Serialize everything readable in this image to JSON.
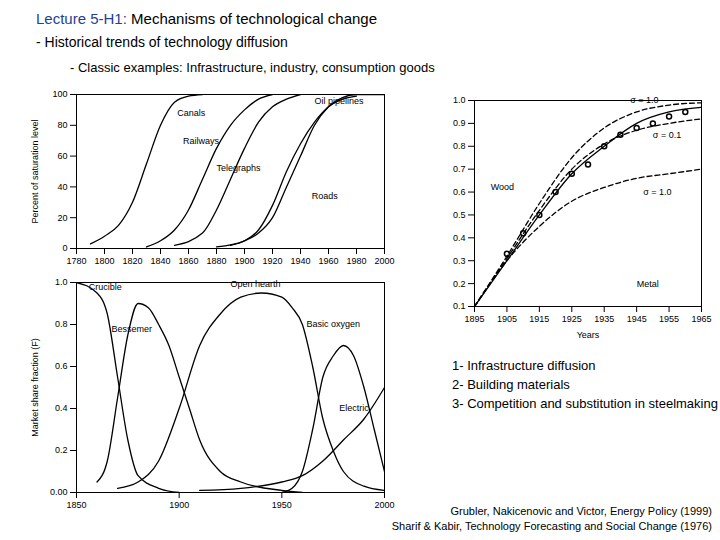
{
  "slide": {
    "title_lead": "Lecture 5-H1:",
    "title": "Mechanisms of technological change",
    "bullets": [
      "- Historical trends of technology diffusion",
      "- Classic examples: Infrastructure, industry, consumption goods"
    ],
    "list": [
      "1- Infrastructure diffusion",
      "2- Building materials",
      "3- Competition and substitution in steelmaking"
    ],
    "references": [
      "Grubler, Nakicenovic and Victor, Energy Policy (1999)",
      "Sharif & Kabir, Technology Forecasting and Social Change (1976)"
    ]
  },
  "chart_data": [
    {
      "type": "line",
      "ylabel": "Percent of saturation level",
      "xlim": [
        1780,
        2000
      ],
      "xticks": [
        1780,
        1800,
        1820,
        1840,
        1860,
        1880,
        1900,
        1920,
        1940,
        1960,
        1980,
        2000
      ],
      "ylim": [
        0,
        100
      ],
      "yticks": [
        0,
        20,
        40,
        60,
        80,
        100
      ],
      "grid": false,
      "series": [
        {
          "name": "Canals",
          "color": "#000000",
          "line_style": "solid",
          "label_x": 1852,
          "label_y": 88,
          "x": [
            1790,
            1800,
            1810,
            1820,
            1830,
            1840,
            1850,
            1860,
            1870
          ],
          "values": [
            3,
            8,
            15,
            30,
            55,
            80,
            95,
            99,
            100
          ]
        },
        {
          "name": "Railways",
          "color": "#000000",
          "line_style": "solid",
          "label_x": 1856,
          "label_y": 70,
          "x": [
            1830,
            1840,
            1850,
            1860,
            1870,
            1880,
            1890,
            1900,
            1910,
            1920
          ],
          "values": [
            1,
            5,
            12,
            25,
            45,
            65,
            80,
            90,
            97,
            100
          ]
        },
        {
          "name": "Telegraphs",
          "color": "#000000",
          "line_style": "solid",
          "label_x": 1880,
          "label_y": 52,
          "x": [
            1850,
            1870,
            1880,
            1890,
            1900,
            1910,
            1920,
            1930,
            1940
          ],
          "values": [
            2,
            10,
            25,
            45,
            65,
            82,
            92,
            97,
            100
          ]
        },
        {
          "name": "Roads",
          "color": "#000000",
          "line_style": "solid",
          "label_x": 1948,
          "label_y": 34,
          "x": [
            1890,
            1900,
            1910,
            1920,
            1930,
            1940,
            1950,
            1960,
            1970,
            1980
          ],
          "values": [
            2,
            5,
            12,
            28,
            50,
            68,
            82,
            92,
            97,
            99
          ]
        },
        {
          "name": "Oil pipelines",
          "color": "#000000",
          "line_style": "solid",
          "label_x": 1950,
          "label_y": 96,
          "x": [
            1880,
            1900,
            1910,
            1920,
            1930,
            1940,
            1950,
            1960,
            1970,
            1980,
            2000
          ],
          "values": [
            1,
            5,
            10,
            20,
            40,
            60,
            80,
            92,
            98,
            100,
            100
          ]
        }
      ]
    },
    {
      "type": "line",
      "xlabel": "Years",
      "xlim": [
        1895,
        1965
      ],
      "xticks": [
        1895,
        1905,
        1915,
        1925,
        1935,
        1945,
        1955,
        1965
      ],
      "ylim": [
        0.1,
        1
      ],
      "yticks": [
        0.1,
        0.2,
        0.3,
        0.4,
        0.5,
        0.6,
        0.7,
        0.8,
        0.9,
        {
          "value": 1,
          "label": "1.0"
        }
      ],
      "grid": false,
      "annotations": [
        {
          "text": "Metal",
          "x": 1945,
          "y": 0.2
        }
      ],
      "series": [
        {
          "name": "Wood",
          "color": "#000000",
          "line_style": "solid",
          "label_x": 1900,
          "label_y": 0.62,
          "x": [
            1895,
            1905,
            1915,
            1925,
            1935,
            1945,
            1955,
            1965
          ],
          "values": [
            0.1,
            0.3,
            0.5,
            0.68,
            0.8,
            0.9,
            0.95,
            0.97
          ]
        },
        {
          "name": "σ = 1.0",
          "color": "#000000",
          "line_style": "dashed",
          "label_x": 1943,
          "label_y": 1.0,
          "x": [
            1895,
            1905,
            1915,
            1925,
            1935,
            1945,
            1955,
            1965
          ],
          "values": [
            0.1,
            0.32,
            0.55,
            0.75,
            0.88,
            0.95,
            0.98,
            0.99
          ]
        },
        {
          "name": "σ = 0.1",
          "color": "#000000",
          "line_style": "dashed",
          "label_x": 1950,
          "label_y": 0.85,
          "x": [
            1895,
            1905,
            1915,
            1925,
            1935,
            1945,
            1955,
            1965
          ],
          "values": [
            0.1,
            0.31,
            0.52,
            0.7,
            0.81,
            0.87,
            0.9,
            0.92
          ]
        },
        {
          "name": "σ = 1.0",
          "color": "#000000",
          "line_style": "dashed",
          "label_x": 1947,
          "label_y": 0.6,
          "x": [
            1895,
            1905,
            1915,
            1925,
            1935,
            1945,
            1955,
            1965
          ],
          "values": [
            0.1,
            0.3,
            0.45,
            0.56,
            0.62,
            0.66,
            0.68,
            0.7
          ]
        },
        {
          "type": "scatter",
          "marker": "circle",
          "color": "#000000",
          "x": [
            1905,
            1910,
            1915,
            1920,
            1925,
            1930,
            1935,
            1940,
            1945,
            1950,
            1955,
            1960
          ],
          "values": [
            0.33,
            0.42,
            0.5,
            0.6,
            0.68,
            0.72,
            0.8,
            0.85,
            0.88,
            0.9,
            0.93,
            0.95
          ]
        }
      ]
    },
    {
      "type": "line",
      "ylabel": "Market share fraction (F)",
      "xlim": [
        1850,
        2000
      ],
      "xticks": [
        1850,
        1900,
        1950,
        2000
      ],
      "ylim": [
        0,
        1
      ],
      "yticks": [
        {
          "value": 0,
          "label": "0.00"
        },
        0.2,
        0.4,
        0.6,
        0.8,
        {
          "value": 1,
          "label": "1.0"
        }
      ],
      "grid": false,
      "series": [
        {
          "name": "Crucible",
          "color": "#000000",
          "line_style": "solid",
          "label_x": 1856,
          "label_y": 0.98,
          "x": [
            1850,
            1860,
            1865,
            1870,
            1875,
            1880,
            1890,
            1900
          ],
          "values": [
            1.0,
            0.95,
            0.85,
            0.55,
            0.25,
            0.08,
            0.02,
            0
          ]
        },
        {
          "name": "Bessemer",
          "color": "#000000",
          "line_style": "solid",
          "label_x": 1867,
          "label_y": 0.78,
          "x": [
            1860,
            1865,
            1870,
            1875,
            1880,
            1885,
            1890,
            1895,
            1900,
            1905,
            1910,
            1920,
            1930,
            1950,
            1960
          ],
          "values": [
            0.05,
            0.15,
            0.45,
            0.75,
            0.9,
            0.88,
            0.8,
            0.7,
            0.55,
            0.4,
            0.25,
            0.1,
            0.05,
            0.01,
            0
          ]
        },
        {
          "name": "Open hearth",
          "color": "#000000",
          "line_style": "solid",
          "label_x": 1925,
          "label_y": 0.99,
          "x": [
            1870,
            1880,
            1890,
            1900,
            1910,
            1920,
            1930,
            1940,
            1950,
            1955,
            1960,
            1965,
            1970,
            1975,
            1980,
            1990,
            2000
          ],
          "values": [
            0.02,
            0.05,
            0.15,
            0.4,
            0.7,
            0.85,
            0.93,
            0.95,
            0.93,
            0.88,
            0.8,
            0.6,
            0.35,
            0.2,
            0.1,
            0.03,
            0.01
          ]
        },
        {
          "name": "Basic oxygen",
          "color": "#000000",
          "line_style": "solid",
          "label_x": 1962,
          "label_y": 0.8,
          "x": [
            1950,
            1955,
            1960,
            1965,
            1970,
            1975,
            1980,
            1985,
            1990,
            1995,
            2000
          ],
          "values": [
            0,
            0.02,
            0.1,
            0.3,
            0.55,
            0.65,
            0.7,
            0.65,
            0.5,
            0.3,
            0.1
          ]
        },
        {
          "name": "Electric",
          "color": "#000000",
          "line_style": "solid",
          "label_x": 1978,
          "label_y": 0.4,
          "x": [
            1910,
            1930,
            1950,
            1960,
            1970,
            1980,
            1990,
            2000
          ],
          "values": [
            0.01,
            0.02,
            0.05,
            0.08,
            0.15,
            0.25,
            0.35,
            0.5
          ]
        }
      ]
    }
  ]
}
